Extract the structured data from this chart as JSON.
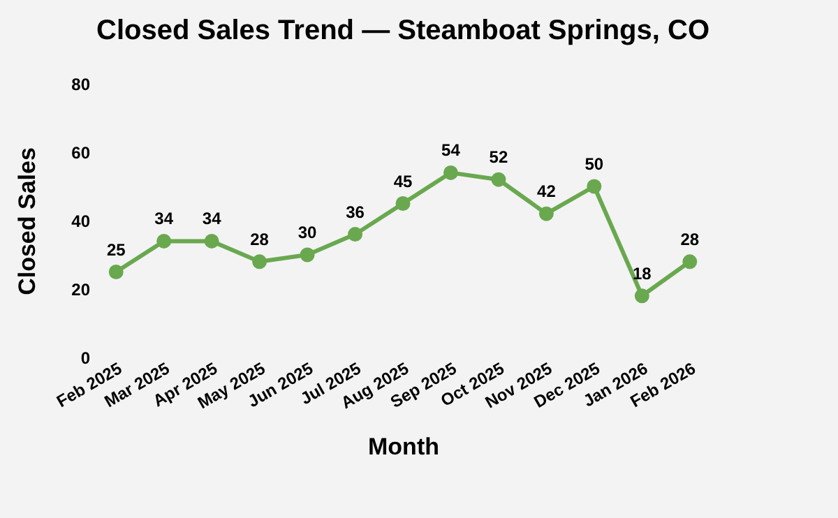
{
  "chart_data": {
    "type": "line",
    "title": "Closed Sales Trend — Steamboat Springs, CO",
    "xlabel": "Month",
    "ylabel": "Closed Sales",
    "categories": [
      "Feb 2025",
      "Mar 2025",
      "Apr 2025",
      "May 2025",
      "Jun 2025",
      "Jul 2025",
      "Aug 2025",
      "Sep 2025",
      "Oct 2025",
      "Nov 2025",
      "Dec 2025",
      "Jan 2026",
      "Feb 2026"
    ],
    "series": [
      {
        "color": "#6aa84f",
        "values": [
          25,
          34,
          34,
          28,
          30,
          36,
          45,
          54,
          52,
          42,
          50,
          18,
          28
        ]
      }
    ],
    "ylim": [
      0,
      80
    ],
    "yticks": [
      0,
      20,
      40,
      60,
      80
    ],
    "grid": false,
    "marker": "circle",
    "line_style": "solid",
    "data_labels": true
  }
}
